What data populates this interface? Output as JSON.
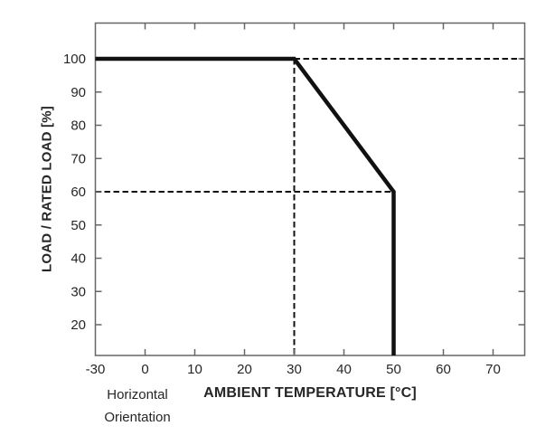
{
  "figure": {
    "background": "#ffffff"
  },
  "chart_data": {
    "type": "line",
    "title": "",
    "xlabel": "AMBIENT TEMPERATURE [°C]",
    "ylabel": "LOAD / RATED LOAD [%]",
    "annotation_lines": [
      "Horizontal",
      "Orientation"
    ],
    "x_ticks": [
      -30,
      0,
      10,
      20,
      30,
      40,
      50,
      60,
      70
    ],
    "y_ticks": [
      20,
      30,
      40,
      50,
      60,
      70,
      80,
      90,
      100
    ],
    "xlim": [
      -30,
      76
    ],
    "ylim_labeled": [
      20,
      100
    ],
    "grid": false,
    "legend": false,
    "x_scale_note": "interval from -30 to 0 is compressed to a single tick step",
    "series": [
      {
        "name": "derating-curve",
        "style": "solid",
        "points": [
          [
            -30,
            100
          ],
          [
            30,
            100
          ],
          [
            50,
            60
          ],
          [
            50,
            "min"
          ]
        ]
      }
    ],
    "guides": [
      {
        "name": "guide-100-percent",
        "style": "dashed",
        "points": [
          [
            30,
            100
          ],
          [
            "max",
            100
          ]
        ]
      },
      {
        "name": "guide-30-degrees",
        "style": "dashed",
        "points": [
          [
            30,
            100
          ],
          [
            30,
            "min"
          ]
        ]
      },
      {
        "name": "guide-60-percent",
        "style": "dashed",
        "points": [
          [
            "min",
            60
          ],
          [
            50,
            60
          ]
        ]
      }
    ],
    "colors": {
      "curve": "#111111",
      "dashed": "#111111",
      "axis": "#666666",
      "text": "#262626"
    }
  }
}
